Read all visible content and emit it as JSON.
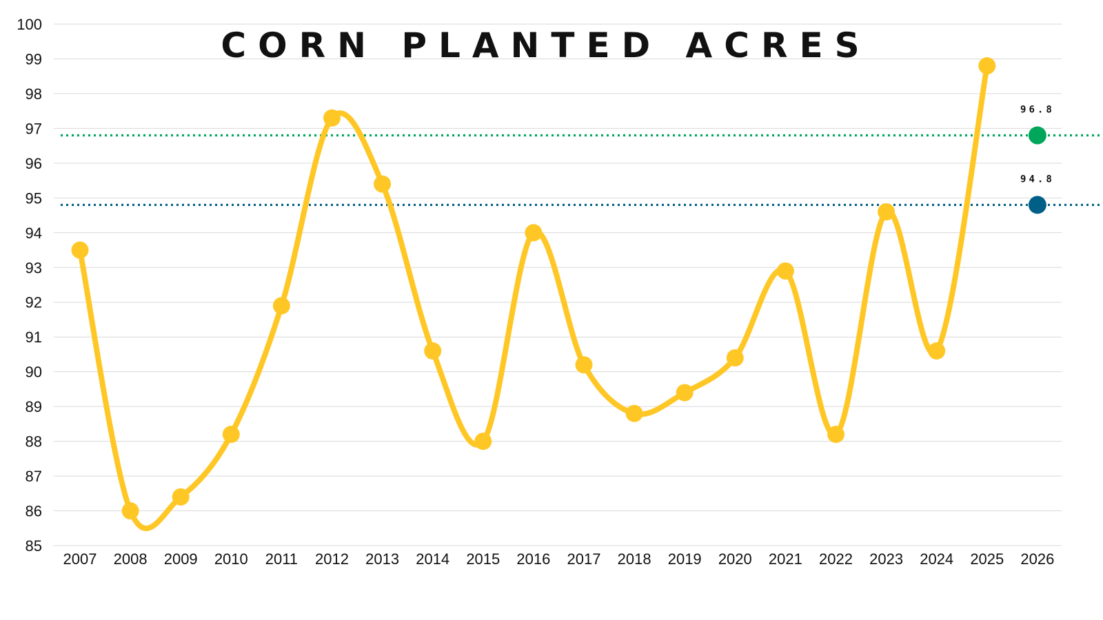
{
  "chart_data": {
    "type": "line",
    "title": "CORN PLANTED ACRES",
    "xlabel": "",
    "ylabel": "",
    "categories": [
      "2007",
      "2008",
      "2009",
      "2010",
      "2011",
      "2012",
      "2013",
      "2014",
      "2015",
      "2016",
      "2017",
      "2018",
      "2019",
      "2020",
      "2021",
      "2022",
      "2023",
      "2024",
      "2025",
      "2026"
    ],
    "series": [
      {
        "name": "Corn Planted Acres",
        "color": "#FFC726",
        "smooth": true,
        "values": [
          93.5,
          86.0,
          86.4,
          88.2,
          91.9,
          97.3,
          95.4,
          90.6,
          88.0,
          94.0,
          90.2,
          88.8,
          89.4,
          90.4,
          92.9,
          88.2,
          94.6,
          90.6,
          98.8,
          null
        ]
      }
    ],
    "reference_lines": [
      {
        "value": 96.8,
        "label": "96.8",
        "color": "#00A65A",
        "category": "2026"
      },
      {
        "value": 94.8,
        "label": "94.8",
        "color": "#005F86",
        "category": "2026"
      }
    ],
    "ylim": [
      85,
      100
    ],
    "yticks": [
      85,
      86,
      87,
      88,
      89,
      90,
      91,
      92,
      93,
      94,
      95,
      96,
      97,
      98,
      99,
      100
    ],
    "grid": true,
    "legend": "none"
  }
}
